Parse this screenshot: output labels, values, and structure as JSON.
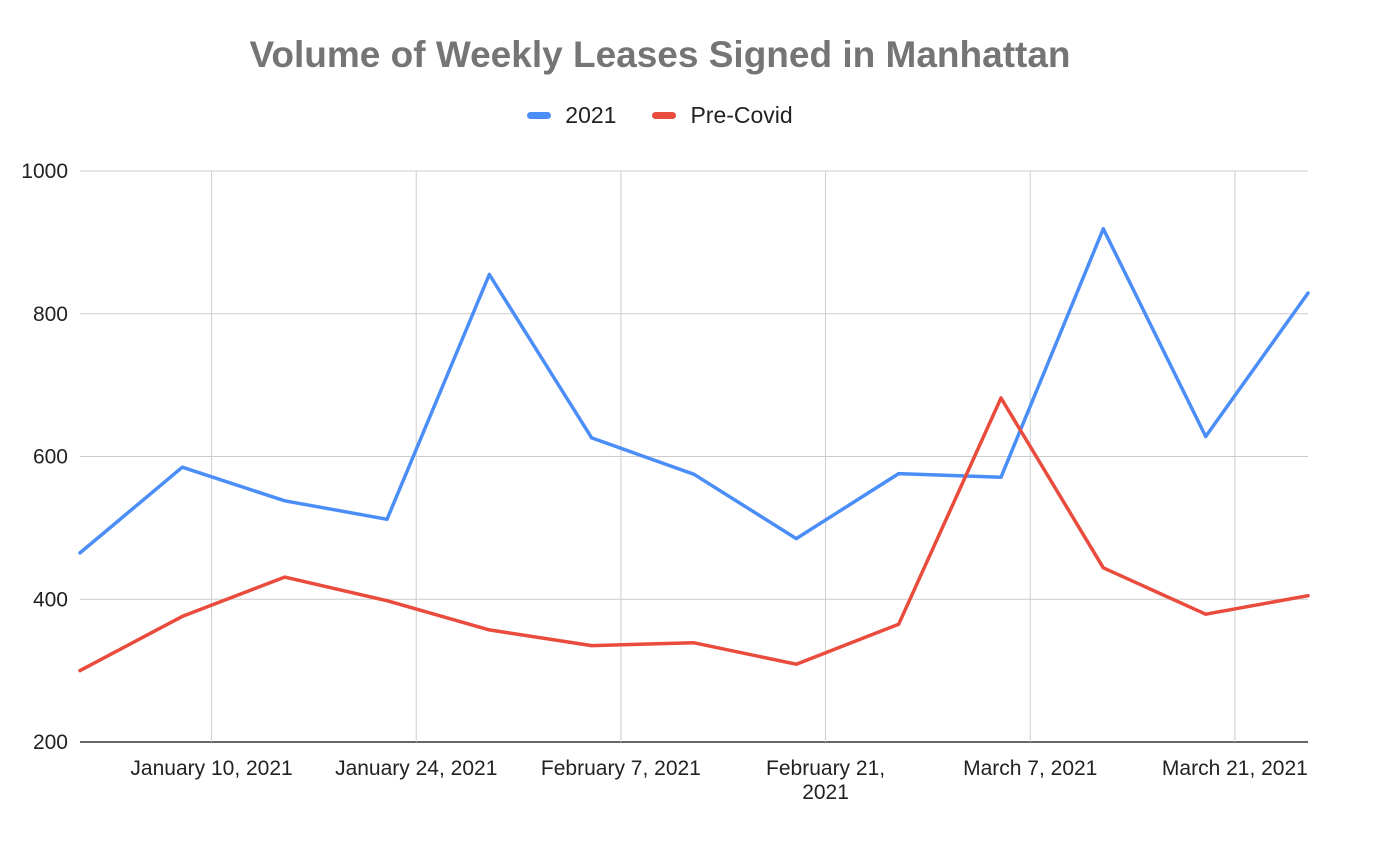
{
  "chart_data": {
    "type": "line",
    "title": "Volume of Weekly Leases Signed in Manhattan",
    "xlabel": "",
    "ylabel": "",
    "ylim": [
      200,
      1000
    ],
    "yticks": [
      200,
      400,
      600,
      800,
      1000
    ],
    "xtick_labels": [
      {
        "date": "2021-01-10",
        "lines": [
          "January 10, 2021"
        ]
      },
      {
        "date": "2021-01-24",
        "lines": [
          "January 24, 2021"
        ]
      },
      {
        "date": "2021-02-07",
        "lines": [
          "February 7, 2021"
        ]
      },
      {
        "date": "2021-02-21",
        "lines": [
          "February 21,",
          "2021"
        ]
      },
      {
        "date": "2021-03-07",
        "lines": [
          "March 7, 2021"
        ]
      },
      {
        "date": "2021-03-21",
        "lines": [
          "March 21, 2021"
        ]
      }
    ],
    "xlim": [
      "2021-01-01",
      "2021-03-26"
    ],
    "x": [
      "2021-01-01",
      "2021-01-08",
      "2021-01-15",
      "2021-01-22",
      "2021-01-29",
      "2021-02-05",
      "2021-02-12",
      "2021-02-19",
      "2021-02-26",
      "2021-03-05",
      "2021-03-12",
      "2021-03-19",
      "2021-03-26"
    ],
    "series": [
      {
        "name": "2021",
        "color": "#4c8ef7",
        "values": [
          465,
          585,
          538,
          512,
          855,
          626,
          575,
          485,
          576,
          571,
          919,
          628,
          829
        ]
      },
      {
        "name": "Pre-Covid",
        "color": "#e94b3c",
        "values": [
          300,
          376,
          431,
          398,
          357,
          335,
          339,
          309,
          365,
          682,
          444,
          379,
          405
        ]
      }
    ],
    "grid": true,
    "legend_position": "top-center"
  }
}
